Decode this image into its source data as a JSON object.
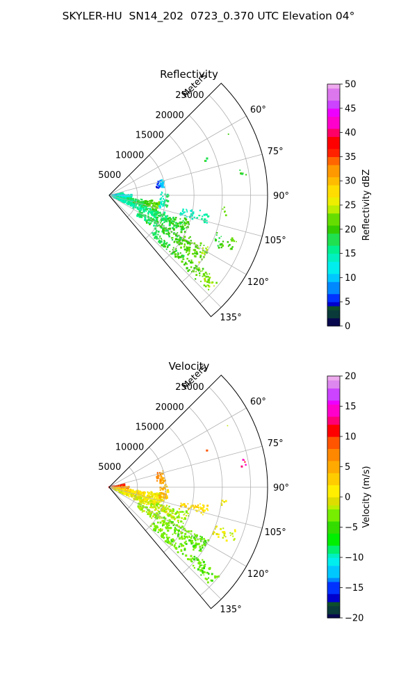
{
  "figure": {
    "suptitle": "SKYLER-HU  SN14_202  0723_0.370 UTC Elevation 04°"
  },
  "chart_data": [
    {
      "type": "heatmap",
      "projection": "polar-sector",
      "title": "Reflectivity",
      "radial_label": "Meters",
      "radial_ticks": [
        5000,
        10000,
        15000,
        20000,
        25000
      ],
      "radial_tick_labels": [
        "5000",
        "10000",
        "15000",
        "20000",
        "25000"
      ],
      "radial_range": [
        0,
        28000
      ],
      "azimuth_range_deg": [
        45,
        140
      ],
      "azimuth_ticks": [
        60,
        75,
        90,
        105,
        120,
        135
      ],
      "azimuth_tick_labels": [
        "60°",
        "75°",
        "90°",
        "105°",
        "120°",
        "135°"
      ],
      "grid": true,
      "colorbar": {
        "label": "Reflectivity dBZ",
        "range": [
          0,
          50
        ],
        "ticks": [
          0,
          5,
          10,
          15,
          20,
          25,
          30,
          35,
          40,
          45,
          50
        ],
        "tick_labels": [
          "0",
          "5",
          "10",
          "15",
          "20",
          "25",
          "30",
          "35",
          "40",
          "45",
          "50"
        ],
        "colormap": [
          [
            0,
            "#08084f"
          ],
          [
            2,
            "#0a3a3a"
          ],
          [
            3,
            "#0d4f2a"
          ],
          [
            4,
            "#0000cc"
          ],
          [
            5,
            "#0033ff"
          ],
          [
            7,
            "#0088ff"
          ],
          [
            9,
            "#00c8ff"
          ],
          [
            11,
            "#00eeee"
          ],
          [
            13,
            "#00f0c0"
          ],
          [
            15,
            "#00f090"
          ],
          [
            17,
            "#20e050"
          ],
          [
            19,
            "#33cc00"
          ],
          [
            21,
            "#66dd00"
          ],
          [
            23,
            "#bbee00"
          ],
          [
            25,
            "#eeee00"
          ],
          [
            27,
            "#ffdd00"
          ],
          [
            29,
            "#ffbb00"
          ],
          [
            31,
            "#ff9900"
          ],
          [
            33,
            "#ff6600"
          ],
          [
            35,
            "#ff2200"
          ],
          [
            37,
            "#ff0000"
          ],
          [
            39,
            "#ff0066"
          ],
          [
            41,
            "#ff00cc"
          ],
          [
            43,
            "#ee00ff"
          ],
          [
            45,
            "#cc44ff"
          ],
          [
            47,
            "#dd77ee"
          ],
          [
            49,
            "#eeaaee"
          ],
          [
            50,
            "#ffe6ff"
          ]
        ]
      },
      "echoes": [
        {
          "az": 84,
          "r0": 0,
          "r1": 2500,
          "w": 8,
          "v0": 13,
          "v1": 16,
          "d": 0.8
        },
        {
          "az": 93,
          "r0": 0,
          "r1": 4000,
          "w": 8,
          "v0": 9,
          "v1": 13,
          "d": 0.8
        },
        {
          "az": 103,
          "r0": 500,
          "r1": 9000,
          "w": 10,
          "v0": 14,
          "v1": 22,
          "d": 0.75
        },
        {
          "az": 112,
          "r0": 1000,
          "r1": 15000,
          "w": 8,
          "v0": 14,
          "v1": 20,
          "d": 0.65
        },
        {
          "az": 122,
          "r0": 6000,
          "r1": 20000,
          "w": 8,
          "v0": 17,
          "v1": 22,
          "d": 0.6
        },
        {
          "az": 131,
          "r0": 10000,
          "r1": 25000,
          "w": 5,
          "v0": 18,
          "v1": 23,
          "d": 0.55
        },
        {
          "az": 78,
          "r0": 8500,
          "r1": 10000,
          "w": 8,
          "v0": 4,
          "v1": 12,
          "d": 0.6
        },
        {
          "az": 95,
          "r0": 9000,
          "r1": 10500,
          "w": 14,
          "v0": 12,
          "v1": 18,
          "d": 0.5
        },
        {
          "az": 103,
          "r0": 13000,
          "r1": 18000,
          "w": 6,
          "v0": 13,
          "v1": 16,
          "d": 0.45
        },
        {
          "az": 70,
          "r0": 18000,
          "r1": 18700,
          "w": 2,
          "v0": 18,
          "v1": 19,
          "d": 0.5
        },
        {
          "az": 63,
          "r0": 23500,
          "r1": 24000,
          "w": 1,
          "v0": 19,
          "v1": 20,
          "d": 0.6
        },
        {
          "az": 80,
          "r0": 23500,
          "r1": 24500,
          "w": 3,
          "v0": 19,
          "v1": 21,
          "d": 0.5
        },
        {
          "az": 98,
          "r0": 20000,
          "r1": 21000,
          "w": 4,
          "v0": 20,
          "v1": 23,
          "d": 0.45
        },
        {
          "az": 112,
          "r0": 20000,
          "r1": 24000,
          "w": 6,
          "v0": 18,
          "v1": 22,
          "d": 0.35
        }
      ]
    },
    {
      "type": "heatmap",
      "projection": "polar-sector",
      "title": "Velocity",
      "radial_label": "Meters",
      "radial_ticks": [
        5000,
        10000,
        15000,
        20000,
        25000
      ],
      "radial_tick_labels": [
        "5000",
        "10000",
        "15000",
        "20000",
        "25000"
      ],
      "radial_range": [
        0,
        28000
      ],
      "azimuth_range_deg": [
        45,
        140
      ],
      "azimuth_ticks": [
        60,
        75,
        90,
        105,
        120,
        135
      ],
      "azimuth_tick_labels": [
        "60°",
        "75°",
        "90°",
        "105°",
        "120°",
        "135°"
      ],
      "grid": true,
      "colorbar": {
        "label": "Velocity (m/s)",
        "range": [
          -20,
          20
        ],
        "ticks": [
          -20,
          -15,
          -10,
          -5,
          0,
          5,
          10,
          15,
          20
        ],
        "tick_labels": [
          "−20",
          "−15",
          "−10",
          "−5",
          "0",
          "5",
          "10",
          "15",
          "20"
        ],
        "colormap": [
          [
            -20,
            "#08084f"
          ],
          [
            -19,
            "#0a3a3a"
          ],
          [
            -18,
            "#0d4f2a"
          ],
          [
            -17,
            "#0000cc"
          ],
          [
            -16,
            "#0033ff"
          ],
          [
            -14,
            "#0088ff"
          ],
          [
            -13,
            "#00c8ff"
          ],
          [
            -11,
            "#00eeee"
          ],
          [
            -10,
            "#00f0c0"
          ],
          [
            -9,
            "#00f070"
          ],
          [
            -8,
            "#00ee00"
          ],
          [
            -6,
            "#33dd00"
          ],
          [
            -4,
            "#77ee00"
          ],
          [
            -2,
            "#bbee00"
          ],
          [
            -1,
            "#dddd00"
          ],
          [
            0,
            "#ffee00"
          ],
          [
            2,
            "#ffcc00"
          ],
          [
            4,
            "#ffaa00"
          ],
          [
            6,
            "#ff8800"
          ],
          [
            8,
            "#ff5500"
          ],
          [
            10,
            "#ff0000"
          ],
          [
            12,
            "#ff0077"
          ],
          [
            13,
            "#ff00cc"
          ],
          [
            15,
            "#ee00ff"
          ],
          [
            16,
            "#cc44ff"
          ],
          [
            18,
            "#dd88ee"
          ],
          [
            19,
            "#eeaaee"
          ],
          [
            20,
            "#ffe6ff"
          ]
        ]
      },
      "echoes": [
        {
          "az": 83,
          "r0": 0,
          "r1": 2800,
          "w": 10,
          "v0": 12,
          "v1": 10,
          "d": 0.8
        },
        {
          "az": 92,
          "r0": 0,
          "r1": 3500,
          "w": 8,
          "v0": 9,
          "v1": 6,
          "d": 0.8
        },
        {
          "az": 102,
          "r0": 500,
          "r1": 10000,
          "w": 10,
          "v0": 3,
          "v1": 0,
          "d": 0.75
        },
        {
          "az": 112,
          "r0": 1000,
          "r1": 15000,
          "w": 8,
          "v0": 0,
          "v1": -2,
          "d": 0.65
        },
        {
          "az": 122,
          "r0": 6000,
          "r1": 20000,
          "w": 8,
          "v0": -2,
          "v1": -4,
          "d": 0.6
        },
        {
          "az": 131,
          "r0": 10000,
          "r1": 25000,
          "w": 5,
          "v0": -3,
          "v1": -4,
          "d": 0.55
        },
        {
          "az": 80,
          "r0": 8500,
          "r1": 10000,
          "w": 12,
          "v0": 8,
          "v1": 4,
          "d": 0.6
        },
        {
          "az": 95,
          "r0": 9000,
          "r1": 10500,
          "w": 14,
          "v0": 5,
          "v1": 3,
          "d": 0.5
        },
        {
          "az": 103,
          "r0": 13000,
          "r1": 18000,
          "w": 6,
          "v0": 3,
          "v1": 1,
          "d": 0.45
        },
        {
          "az": 70,
          "r0": 18000,
          "r1": 18700,
          "w": 2,
          "v0": 10,
          "v1": 9,
          "d": 0.5
        },
        {
          "az": 63,
          "r0": 23500,
          "r1": 24000,
          "w": 1,
          "v0": -1,
          "v1": 0,
          "d": 0.6
        },
        {
          "az": 80,
          "r0": 23500,
          "r1": 24500,
          "w": 3,
          "v0": 14,
          "v1": 13,
          "d": 0.5
        },
        {
          "az": 98,
          "r0": 20000,
          "r1": 21000,
          "w": 4,
          "v0": 1,
          "v1": 0,
          "d": 0.45
        },
        {
          "az": 112,
          "r0": 20000,
          "r1": 24000,
          "w": 6,
          "v0": 0,
          "v1": -1,
          "d": 0.35
        }
      ]
    }
  ]
}
